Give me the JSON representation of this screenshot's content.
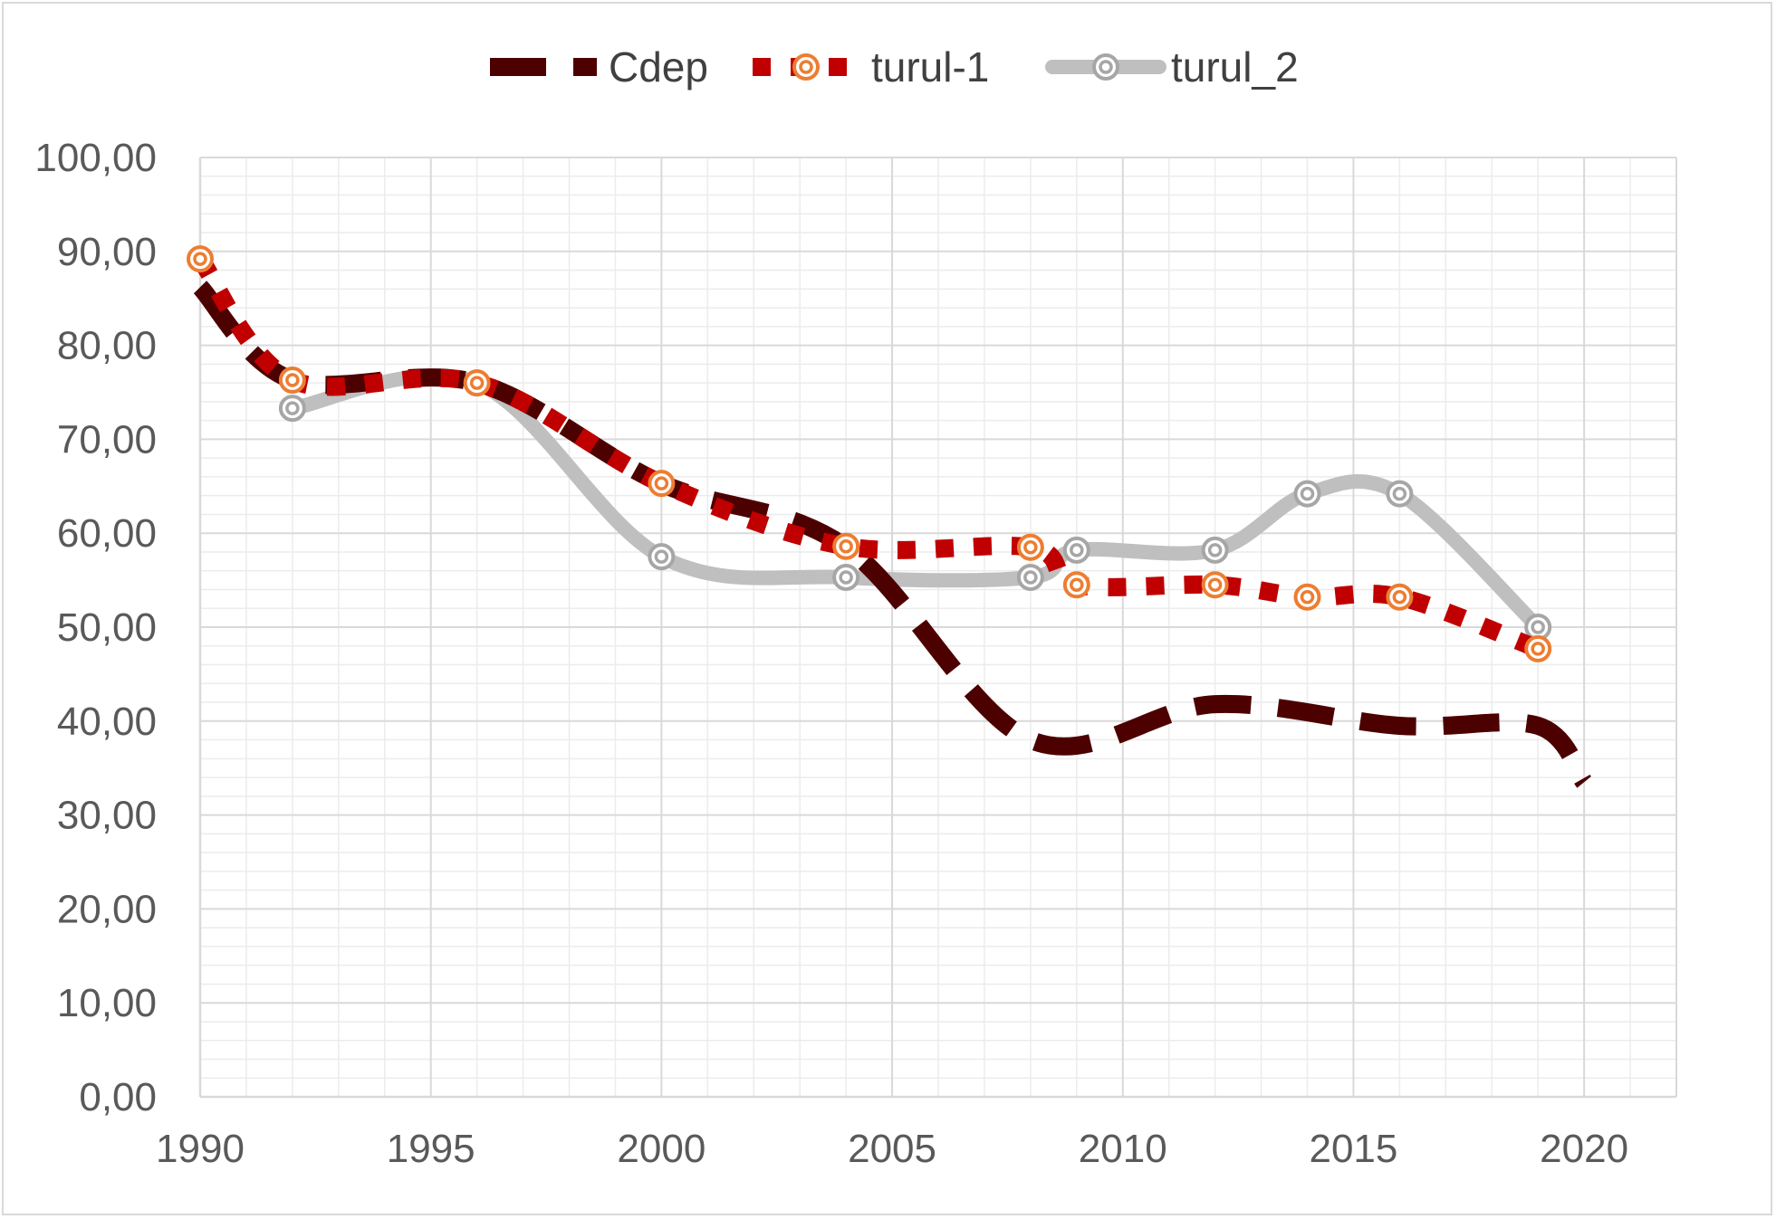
{
  "chart_data": {
    "type": "line",
    "title": "",
    "xlabel": "",
    "ylabel": "",
    "xlim": [
      1990,
      2022
    ],
    "ylim": [
      0,
      100
    ],
    "x_ticks": [
      "1990",
      "1995",
      "2000",
      "2005",
      "2010",
      "2015",
      "2020"
    ],
    "x_tick_values": [
      1990,
      1995,
      2000,
      2005,
      2010,
      2015,
      2020
    ],
    "y_ticks": [
      "0,00",
      "10,00",
      "20,00",
      "30,00",
      "40,00",
      "50,00",
      "60,00",
      "70,00",
      "80,00",
      "90,00",
      "100,00"
    ],
    "y_tick_values": [
      0,
      10,
      20,
      30,
      40,
      50,
      60,
      70,
      80,
      90,
      100
    ],
    "grid": true,
    "legend_position": "top",
    "series": [
      {
        "name": "Cdep",
        "color": "#4d0000",
        "style": "long-dash",
        "markers": false,
        "points": [
          [
            1990,
            86.2
          ],
          [
            1992,
            76.3
          ],
          [
            1996,
            76.0
          ],
          [
            2000,
            65.3
          ],
          [
            2004,
            58.5
          ],
          [
            2008,
            38.0
          ],
          [
            2012,
            41.8
          ],
          [
            2016,
            39.5
          ],
          [
            2019,
            39.5
          ],
          [
            2020,
            33.5
          ]
        ]
      },
      {
        "name": "turul-1",
        "color": "#c00000",
        "marker_color": "#ed7d31",
        "style": "square-dot",
        "markers": true,
        "points": [
          [
            1990,
            89.2
          ],
          [
            1992,
            76.3
          ],
          [
            1996,
            76.0
          ],
          [
            2000,
            65.3
          ],
          [
            2004,
            58.6
          ],
          [
            2008,
            58.5
          ],
          [
            2009,
            54.5
          ],
          [
            2012,
            54.5
          ],
          [
            2014,
            53.2
          ],
          [
            2016,
            53.2
          ],
          [
            2019,
            47.7
          ]
        ]
      },
      {
        "name": "turul_2",
        "color": "#bfbfbf",
        "marker_color": "#a6a6a6",
        "style": "solid",
        "markers": true,
        "points": [
          [
            1992,
            73.3
          ],
          [
            1996,
            76.0
          ],
          [
            2000,
            57.5
          ],
          [
            2004,
            55.3
          ],
          [
            2008,
            55.3
          ],
          [
            2009,
            58.2
          ],
          [
            2012,
            58.2
          ],
          [
            2014,
            64.2
          ],
          [
            2016,
            64.2
          ],
          [
            2019,
            50.0
          ]
        ]
      }
    ]
  }
}
